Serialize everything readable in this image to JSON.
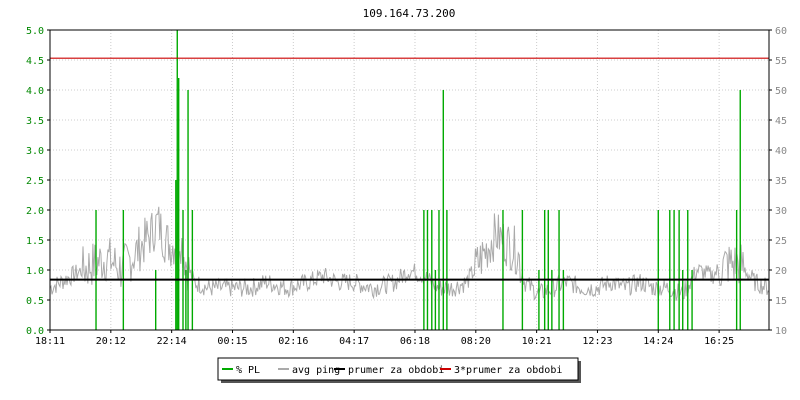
{
  "chart_data": {
    "type": "line",
    "title": "109.164.73.200",
    "x_tick_labels": [
      "18:11",
      "20:12",
      "22:14",
      "00:15",
      "02:16",
      "04:17",
      "06:18",
      "08:20",
      "10:21",
      "12:23",
      "14:24",
      "16:25"
    ],
    "y_left": {
      "ticks": [
        "0.0",
        "0.5",
        "1.0",
        "1.5",
        "2.0",
        "2.5",
        "3.0",
        "3.5",
        "4.0",
        "4.5",
        "5.0"
      ],
      "range": [
        0,
        5
      ]
    },
    "y_right": {
      "ticks": [
        "10",
        "15",
        "20",
        "25",
        "30",
        "35",
        "40",
        "45",
        "50",
        "55",
        "60"
      ],
      "range": [
        10,
        60
      ]
    },
    "grid": true,
    "legend_placement": "bottom-center",
    "legend": [
      {
        "label": "% PL",
        "color": "#00aa00"
      },
      {
        "label": "avg ping",
        "color": "#aaaaaa"
      },
      {
        "label": "prumer za obdobi",
        "color": "#000000"
      },
      {
        "label": "3*prumer za obdobi",
        "color": "#cc0000"
      }
    ],
    "series": [
      {
        "name": "% PL",
        "axis": "left",
        "color": "#00aa00",
        "spikes": [
          {
            "x": 0.064,
            "y": 2.0
          },
          {
            "x": 0.102,
            "y": 2.0
          },
          {
            "x": 0.147,
            "y": 1.0
          },
          {
            "x": 0.175,
            "y": 2.5
          },
          {
            "x": 0.177,
            "y": 5.0
          },
          {
            "x": 0.179,
            "y": 4.2
          },
          {
            "x": 0.185,
            "y": 2.0
          },
          {
            "x": 0.189,
            "y": 1.0
          },
          {
            "x": 0.192,
            "y": 4.0
          },
          {
            "x": 0.198,
            "y": 2.0
          },
          {
            "x": 0.52,
            "y": 2.0
          },
          {
            "x": 0.525,
            "y": 2.0
          },
          {
            "x": 0.531,
            "y": 2.0
          },
          {
            "x": 0.536,
            "y": 1.0
          },
          {
            "x": 0.541,
            "y": 2.0
          },
          {
            "x": 0.547,
            "y": 4.0
          },
          {
            "x": 0.552,
            "y": 2.0
          },
          {
            "x": 0.63,
            "y": 2.0
          },
          {
            "x": 0.657,
            "y": 2.0
          },
          {
            "x": 0.68,
            "y": 1.0
          },
          {
            "x": 0.688,
            "y": 2.0
          },
          {
            "x": 0.693,
            "y": 2.0
          },
          {
            "x": 0.698,
            "y": 1.0
          },
          {
            "x": 0.708,
            "y": 2.0
          },
          {
            "x": 0.714,
            "y": 1.0
          },
          {
            "x": 0.846,
            "y": 2.0
          },
          {
            "x": 0.862,
            "y": 2.0
          },
          {
            "x": 0.868,
            "y": 2.0
          },
          {
            "x": 0.875,
            "y": 2.0
          },
          {
            "x": 0.88,
            "y": 1.0
          },
          {
            "x": 0.887,
            "y": 2.0
          },
          {
            "x": 0.893,
            "y": 1.0
          },
          {
            "x": 0.955,
            "y": 2.0
          },
          {
            "x": 0.96,
            "y": 4.0
          }
        ]
      },
      {
        "name": "avg ping",
        "axis": "right",
        "color": "#aaaaaa",
        "x": [
          0.0,
          0.03,
          0.06,
          0.08,
          0.1,
          0.12,
          0.14,
          0.15,
          0.16,
          0.17,
          0.18,
          0.19,
          0.2,
          0.22,
          0.25,
          0.28,
          0.3,
          0.33,
          0.36,
          0.38,
          0.4,
          0.42,
          0.45,
          0.48,
          0.5,
          0.52,
          0.54,
          0.56,
          0.58,
          0.6,
          0.62,
          0.64,
          0.65,
          0.66,
          0.68,
          0.7,
          0.72,
          0.74,
          0.76,
          0.78,
          0.8,
          0.82,
          0.84,
          0.86,
          0.88,
          0.9,
          0.92,
          0.94,
          0.96,
          0.98,
          1.0
        ],
        "y": [
          17,
          19,
          21,
          22,
          20,
          23,
          26,
          28,
          25,
          24,
          26,
          21,
          18,
          17,
          17,
          17,
          18,
          17,
          18,
          19,
          18,
          18,
          17,
          18,
          20,
          19,
          17,
          17,
          18,
          22,
          26,
          24,
          23,
          18,
          16,
          17,
          18,
          17,
          17,
          18,
          17,
          18,
          17,
          17,
          16,
          20,
          19,
          21,
          21,
          18,
          17
        ]
      }
    ],
    "lines": [
      {
        "name": "prumer za obdobi",
        "axis": "right",
        "y": 18.4,
        "color": "#000000"
      },
      {
        "name": "3*prumer za obdobi",
        "axis": "right",
        "y": 55.3,
        "color": "#cc0000"
      }
    ]
  }
}
